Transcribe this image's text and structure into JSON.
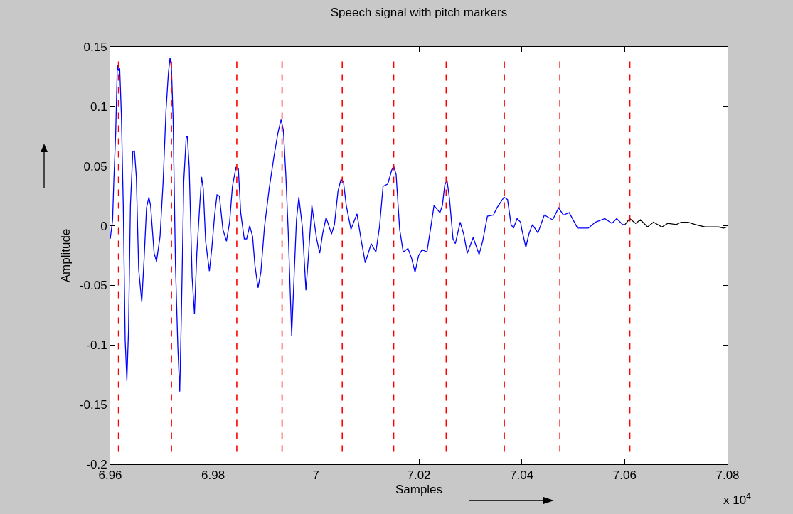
{
  "chart_data": {
    "type": "line",
    "title": "Speech signal with pitch markers",
    "xlabel": "Samples",
    "ylabel": "Amplitude",
    "annotations": [
      "x 10$^{4}$"
    ],
    "xlim": [
      6.96,
      7.08
    ],
    "xticks": [
      6.96,
      6.98,
      7,
      7.02,
      7.04,
      7.06,
      7.08
    ],
    "ylim": [
      -0.2,
      0.15
    ],
    "yticks": [
      -0.2,
      -0.15,
      -0.1,
      -0.05,
      0,
      0.05,
      0.1,
      0.15
    ],
    "series": [
      {
        "color": "#0000ff",
        "x": [
          6.96,
          6.96046,
          6.96069,
          6.96106,
          6.96138,
          6.96161,
          6.96184,
          6.96217,
          6.96253,
          6.9629,
          6.96323,
          6.96355,
          6.96392,
          6.96438,
          6.9647,
          6.96507,
          6.96553,
          6.96613,
          6.96659,
          6.96705,
          6.96751,
          6.96784,
          6.96853,
          6.96899,
          6.96968,
          6.97028,
          6.97083,
          6.9713,
          6.97162,
          6.9719,
          6.97222,
          6.97268,
          6.97314,
          6.97351,
          6.97383,
          6.97429,
          6.97476,
          6.97498,
          6.97535,
          6.97591,
          6.97637,
          6.97683,
          6.97739,
          6.97775,
          6.97808,
          6.97854,
          6.97927,
          6.97974,
          6.98029,
          6.98075,
          6.98121,
          6.9819,
          6.98259,
          6.9832,
          6.98375,
          6.98444,
          6.9849,
          6.98536,
          6.98605,
          6.98652,
          6.98711,
          6.98767,
          6.98812,
          6.98873,
          6.98928,
          6.98998,
          6.99089,
          6.99182,
          6.9926,
          6.9932,
          6.99366,
          6.99413,
          6.99458,
          6.99527,
          6.99573,
          6.9962,
          6.99666,
          6.99735,
          6.99804,
          6.9985,
          6.99919,
          7.00012,
          7.00072,
          7.00127,
          7.00196,
          7.00302,
          7.00358,
          7.00427,
          7.00486,
          7.00533,
          7.00588,
          7.0068,
          7.00796,
          7.00874,
          7.00957,
          7.01073,
          7.01164,
          7.01234,
          7.01303,
          7.01395,
          7.01474,
          7.0151,
          7.01557,
          7.01626,
          7.01695,
          7.01787,
          7.01856,
          7.01925,
          7.01994,
          7.02063,
          7.02156,
          7.02225,
          7.02294,
          7.02409,
          7.02456,
          7.02502,
          7.02547,
          7.02594,
          7.02663,
          7.02709,
          7.02802,
          7.02871,
          7.0294,
          7.03055,
          7.0317,
          7.03239,
          7.03332,
          7.03447,
          7.03516,
          7.03654,
          7.03723,
          7.03792,
          7.03839,
          7.03908,
          7.03977,
          7.04,
          7.04079,
          7.04138,
          7.04207,
          7.04314,
          7.04438,
          7.046,
          7.04715,
          7.04808,
          7.04922,
          7.05084,
          7.05292,
          7.0543,
          7.05614,
          7.05752,
          7.05845,
          7.0596,
          7.06006
        ],
        "values": [
          -0.011,
          0.005,
          0.037,
          0.078,
          0.135,
          0.13,
          0.132,
          0.092,
          0.017,
          -0.096,
          -0.13,
          -0.088,
          0.017,
          0.062,
          0.063,
          0.041,
          -0.037,
          -0.064,
          -0.027,
          0.015,
          0.024,
          0.017,
          -0.023,
          -0.03,
          -0.009,
          0.037,
          0.096,
          0.128,
          0.141,
          0.132,
          0.09,
          -0.033,
          -0.102,
          -0.139,
          -0.074,
          0.037,
          0.074,
          0.075,
          0.049,
          -0.043,
          -0.074,
          -0.023,
          0.017,
          0.041,
          0.031,
          -0.013,
          -0.038,
          -0.019,
          0.009,
          0.026,
          0.025,
          -0.003,
          -0.013,
          0.003,
          0.033,
          0.049,
          0.048,
          0.011,
          -0.011,
          -0.011,
          0,
          -0.009,
          -0.033,
          -0.052,
          -0.039,
          -0.001,
          0.031,
          0.058,
          0.078,
          0.089,
          0.08,
          0.043,
          -0.003,
          -0.092,
          -0.043,
          0.005,
          0.024,
          -0.001,
          -0.054,
          -0.027,
          0.017,
          -0.011,
          -0.023,
          -0.007,
          0.007,
          -0.007,
          0.001,
          0.029,
          0.039,
          0.037,
          0.017,
          -0.003,
          0.01,
          -0.011,
          -0.031,
          -0.015,
          -0.022,
          -0.001,
          0.033,
          0.035,
          0.047,
          0.05,
          0.043,
          -0.003,
          -0.022,
          -0.019,
          -0.027,
          -0.039,
          -0.025,
          -0.02,
          -0.022,
          -0.003,
          0.017,
          0.011,
          0.017,
          0.034,
          0.038,
          0.023,
          -0.011,
          -0.015,
          0.003,
          -0.007,
          -0.023,
          -0.01,
          -0.024,
          -0.013,
          0.008,
          0.009,
          0.015,
          0.024,
          0.022,
          0.001,
          -0.002,
          0.006,
          0.003,
          -0.003,
          -0.018,
          -0.007,
          0.001,
          -0.006,
          0.009,
          0.005,
          0.015,
          0.009,
          0.011,
          -0.002,
          -0.002,
          0.003,
          0.006,
          0.002,
          0.006,
          0.001,
          0.001
        ]
      },
      {
        "color": "#000000",
        "x": [
          7.06006,
          7.06098,
          7.06213,
          7.06306,
          7.06444,
          7.0656,
          7.06722,
          7.06838,
          7.07004,
          7.07096,
          7.07234,
          7.07373,
          7.07562,
          7.0783,
          7.07922,
          7.07991
        ],
        "values": [
          0.001,
          0.006,
          0.002,
          0.005,
          -0.001,
          0.003,
          -0.001,
          0.002,
          0.001,
          0.003,
          0.003,
          0.001,
          -0.001,
          -0.001,
          -0.002,
          -0.001
        ]
      }
    ],
    "ref_lines": [
      {
        "axis": "x",
        "value": 6.9616,
        "color": "#ff0000",
        "line_style": "dashed"
      },
      {
        "axis": "x",
        "value": 6.9719,
        "color": "#ff0000",
        "line_style": "dashed"
      },
      {
        "axis": "x",
        "value": 6.9846,
        "color": "#ff0000",
        "line_style": "dashed"
      },
      {
        "axis": "x",
        "value": 6.9934,
        "color": "#ff0000",
        "line_style": "dashed"
      },
      {
        "axis": "x",
        "value": 7.0051,
        "color": "#ff0000",
        "line_style": "dashed"
      },
      {
        "axis": "x",
        "value": 7.0151,
        "color": "#ff0000",
        "line_style": "dashed"
      },
      {
        "axis": "x",
        "value": 7.0253,
        "color": "#ff0000",
        "line_style": "dashed"
      },
      {
        "axis": "x",
        "value": 7.0366,
        "color": "#ff0000",
        "line_style": "dashed"
      },
      {
        "axis": "x",
        "value": 7.0474,
        "color": "#ff0000",
        "line_style": "dashed"
      },
      {
        "axis": "x",
        "value": 7.061,
        "color": "#ff0000",
        "line_style": "dashed"
      }
    ]
  }
}
